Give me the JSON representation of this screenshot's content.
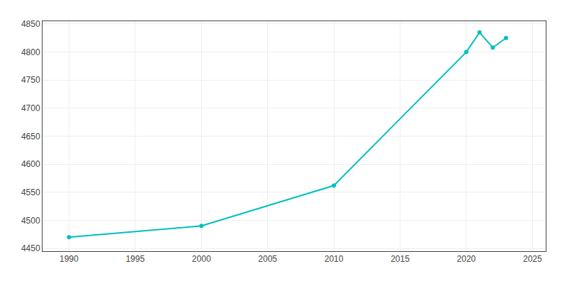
{
  "chart_data": {
    "type": "line",
    "x": [
      1990,
      2000,
      2010,
      2020,
      2021,
      2022,
      2023
    ],
    "values": [
      4470,
      4490,
      4562,
      4800,
      4835,
      4808,
      4825
    ],
    "color": "#00BFBF",
    "marker": "circle",
    "xlim": [
      1988,
      2026
    ],
    "ylim": [
      4445,
      4855
    ],
    "xticks": [
      1990,
      1995,
      2000,
      2005,
      2010,
      2015,
      2020,
      2025
    ],
    "yticks": [
      4450,
      4500,
      4550,
      4600,
      4650,
      4700,
      4750,
      4800,
      4850
    ],
    "grid": true
  }
}
